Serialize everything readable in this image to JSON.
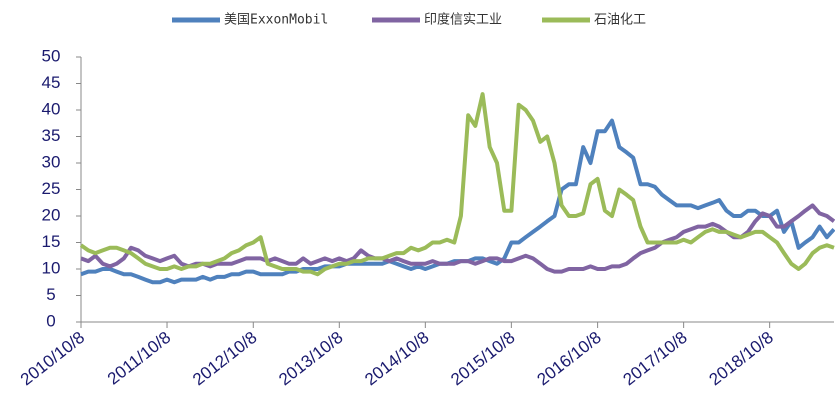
{
  "chart_data": {
    "type": "line",
    "x": [
      "2010/10/8",
      "2010/11/8",
      "2010/12/8",
      "2011/1/8",
      "2011/2/8",
      "2011/3/8",
      "2011/4/8",
      "2011/5/8",
      "2011/6/8",
      "2011/7/8",
      "2011/8/8",
      "2011/9/8",
      "2011/10/8",
      "2011/11/8",
      "2011/12/8",
      "2012/1/8",
      "2012/2/8",
      "2012/3/8",
      "2012/4/8",
      "2012/5/8",
      "2012/6/8",
      "2012/7/8",
      "2012/8/8",
      "2012/9/8",
      "2012/10/8",
      "2012/11/8",
      "2012/12/8",
      "2013/1/8",
      "2013/2/8",
      "2013/3/8",
      "2013/4/8",
      "2013/5/8",
      "2013/6/8",
      "2013/7/8",
      "2013/8/8",
      "2013/9/8",
      "2013/10/8",
      "2013/11/8",
      "2013/12/8",
      "2014/1/8",
      "2014/2/8",
      "2014/3/8",
      "2014/4/8",
      "2014/5/8",
      "2014/6/8",
      "2014/7/8",
      "2014/8/8",
      "2014/9/8",
      "2014/10/8",
      "2014/11/8",
      "2014/12/8",
      "2015/1/8",
      "2015/2/8",
      "2015/3/8",
      "2015/4/8",
      "2015/5/8",
      "2015/6/8",
      "2015/7/8",
      "2015/8/8",
      "2015/9/8",
      "2015/10/8",
      "2015/11/8",
      "2015/12/8",
      "2016/1/8",
      "2016/2/8",
      "2016/3/8",
      "2016/4/8",
      "2016/5/8",
      "2016/6/8",
      "2016/7/8",
      "2016/8/8",
      "2016/9/8",
      "2016/10/8",
      "2016/11/8",
      "2016/12/8",
      "2017/1/8",
      "2017/2/8",
      "2017/3/8",
      "2017/4/8",
      "2017/5/8",
      "2017/6/8",
      "2017/7/8",
      "2017/8/8",
      "2017/9/8",
      "2017/10/8",
      "2017/11/8",
      "2017/12/8",
      "2018/1/8",
      "2018/2/8",
      "2018/3/8",
      "2018/4/8",
      "2018/5/8",
      "2018/6/8",
      "2018/7/8",
      "2018/8/8",
      "2018/9/8",
      "2018/10/8",
      "2018/11/8",
      "2018/12/8",
      "2019/1/8",
      "2019/2/8",
      "2019/3/8",
      "2019/4/8",
      "2019/5/8",
      "2019/6/8",
      "2019/7/8"
    ],
    "series": [
      {
        "name": "美国ExxonMobil",
        "color": "#4f81bd",
        "values": [
          9,
          9.5,
          9.5,
          10,
          10,
          9.5,
          9,
          9,
          8.5,
          8,
          7.5,
          7.5,
          8,
          7.5,
          8,
          8,
          8,
          8.5,
          8,
          8.5,
          8.5,
          9,
          9,
          9.5,
          9.5,
          9,
          9,
          9,
          9,
          9.5,
          9.5,
          10,
          10,
          10,
          10.5,
          10.5,
          10.5,
          11,
          11,
          11,
          11,
          11,
          11,
          11.5,
          11,
          10.5,
          10,
          10.5,
          10,
          10.5,
          11,
          11,
          11.5,
          11.5,
          11.5,
          12,
          12,
          11.5,
          11,
          12,
          15,
          15,
          16,
          17,
          18,
          19,
          20,
          25,
          26,
          26,
          33,
          30,
          36,
          36,
          38,
          33,
          32,
          31,
          26,
          26,
          25.5,
          24,
          23,
          22,
          22,
          22,
          21.5,
          22,
          22.5,
          23,
          21,
          20,
          20,
          21,
          21,
          20,
          20,
          21,
          17,
          19,
          14,
          15,
          16,
          18,
          16,
          17.5
        ]
      },
      {
        "name": "印度信实工业",
        "color": "#8064a2",
        "values": [
          12,
          11.5,
          12.5,
          11,
          10.5,
          11,
          12,
          14,
          13.5,
          12.5,
          12,
          11.5,
          12,
          12.5,
          11,
          10.5,
          11,
          11,
          10.5,
          11,
          11,
          11,
          11.5,
          12,
          12,
          12,
          11.5,
          12,
          11.5,
          11,
          11,
          12,
          11,
          11.5,
          12,
          11.5,
          12,
          11.5,
          12,
          13.5,
          12.5,
          12,
          12,
          11.5,
          12,
          11.5,
          11,
          11,
          11,
          11.5,
          11,
          11,
          11,
          11.5,
          11.5,
          11,
          11.5,
          12,
          12,
          11.5,
          11.5,
          12,
          12.5,
          12,
          11,
          10,
          9.5,
          9.5,
          10,
          10,
          10,
          10.5,
          10,
          10,
          10.5,
          10.5,
          11,
          12,
          13,
          13.5,
          14,
          15,
          15.5,
          16,
          17,
          17.5,
          18,
          18,
          18.5,
          18,
          17,
          16,
          16,
          17,
          19,
          20.5,
          20,
          18,
          18,
          19,
          20,
          21,
          22,
          20.5,
          20,
          19
        ]
      },
      {
        "name": "石油化工",
        "color": "#9bbb59",
        "values": [
          14.5,
          13.5,
          13,
          13.5,
          14,
          14,
          13.5,
          13,
          12,
          11,
          10.5,
          10,
          10,
          10.5,
          10,
          10.5,
          10.5,
          11,
          11,
          11.5,
          12,
          13,
          13.5,
          14.5,
          15,
          16,
          11,
          10.5,
          10,
          10,
          10,
          9.5,
          9.5,
          9,
          10,
          10.5,
          11,
          11,
          11.5,
          11.5,
          12,
          12,
          12,
          12.5,
          13,
          13,
          14,
          13.5,
          14,
          15,
          15,
          15.5,
          15,
          20,
          39,
          37,
          43,
          33,
          30,
          21,
          21,
          41,
          40,
          38,
          34,
          35,
          30,
          22,
          20,
          20,
          20.5,
          26,
          27,
          21,
          20,
          25,
          24,
          23,
          18,
          15,
          15,
          15,
          15,
          15,
          15.5,
          15,
          16,
          17,
          17.5,
          17,
          17,
          16.5,
          16,
          16.5,
          17,
          17,
          16,
          15,
          13,
          11,
          10,
          11,
          13,
          14,
          14.5,
          14
        ]
      }
    ],
    "xlim": [
      "2010/10/8",
      "2019/7/8"
    ],
    "xticks": [
      "2010/10/8",
      "2011/10/8",
      "2012/10/8",
      "2013/10/8",
      "2014/10/8",
      "2015/10/8",
      "2016/10/8",
      "2017/10/8",
      "2018/10/8"
    ],
    "ylim": [
      0,
      50
    ],
    "yticks": [
      0,
      5,
      10,
      15,
      20,
      25,
      30,
      35,
      40,
      45,
      50
    ]
  }
}
